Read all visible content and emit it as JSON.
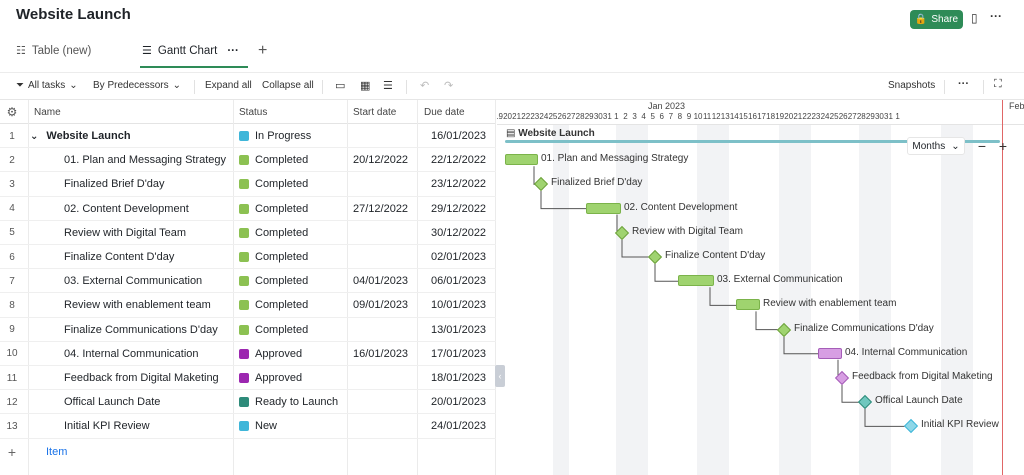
{
  "header": {
    "title": "Website Launch",
    "share_label": "Share"
  },
  "view_tabs": [
    {
      "label": "Table (new)"
    },
    {
      "label": "Gantt Chart"
    }
  ],
  "toolbar": {
    "filter_label": "All tasks",
    "group_label": "By Predecessors",
    "expand_label": "Expand all",
    "collapse_label": "Collapse all",
    "snapshots_label": "Snapshots"
  },
  "columns": {
    "name": "Name",
    "status": "Status",
    "start": "Start date",
    "due": "Due date"
  },
  "status_colors": {
    "In Progress": "#3fb6d9",
    "Completed": "#8cc152",
    "Approved": "#9c27b0",
    "Ready to Launch": "#2e8b7a",
    "New": "#3fb6d9"
  },
  "rows": [
    {
      "num": "1",
      "name": "Website Launch",
      "status": "In Progress",
      "start": "",
      "due": "16/01/2023"
    },
    {
      "num": "2",
      "name": "01. Plan and Messaging Strategy",
      "status": "Completed",
      "start": "20/12/2022",
      "due": "22/12/2022"
    },
    {
      "num": "3",
      "name": "Finalized Brief D'day",
      "status": "Completed",
      "start": "",
      "due": "23/12/2022"
    },
    {
      "num": "4",
      "name": "02. Content Development",
      "status": "Completed",
      "start": "27/12/2022",
      "due": "29/12/2022"
    },
    {
      "num": "5",
      "name": "Review with Digital Team",
      "status": "Completed",
      "start": "",
      "due": "30/12/2022"
    },
    {
      "num": "6",
      "name": "Finalize Content D'day",
      "status": "Completed",
      "start": "",
      "due": "02/01/2023"
    },
    {
      "num": "7",
      "name": "03. External Communication",
      "status": "Completed",
      "start": "04/01/2023",
      "due": "06/01/2023"
    },
    {
      "num": "8",
      "name": "Review with enablement team",
      "status": "Completed",
      "start": "09/01/2023",
      "due": "10/01/2023"
    },
    {
      "num": "9",
      "name": "Finalize Communications D'day",
      "status": "Completed",
      "start": "",
      "due": "13/01/2023"
    },
    {
      "num": "10",
      "name": "04. Internal Communication",
      "status": "Approved",
      "start": "16/01/2023",
      "due": "17/01/2023"
    },
    {
      "num": "11",
      "name": "Feedback from Digital Maketing",
      "status": "Approved",
      "start": "",
      "due": "18/01/2023"
    },
    {
      "num": "12",
      "name": "Offical Launch Date",
      "status": "Ready to Launch",
      "start": "",
      "due": "20/01/2023"
    },
    {
      "num": "13",
      "name": "Initial KPI Review",
      "status": "New",
      "start": "",
      "due": "24/01/2023"
    }
  ],
  "add_row": {
    "icon": "+",
    "label": "Item"
  },
  "gantt": {
    "month_jan": "Jan 2023",
    "month_feb": "Feb",
    "days": [
      "19",
      "20",
      "21",
      "22",
      "23",
      "24",
      "25",
      "26",
      "27",
      "28",
      "29",
      "30",
      "31",
      "1",
      "2",
      "3",
      "4",
      "5",
      "6",
      "7",
      "8",
      "9",
      "10",
      "11",
      "12",
      "13",
      "14",
      "15",
      "16",
      "17",
      "18",
      "19",
      "20",
      "21",
      "22",
      "23",
      "24",
      "25",
      "26",
      "27",
      "28",
      "29",
      "30",
      "31",
      "1"
    ],
    "zoom_label": "Months",
    "summary_label": "Website Launch",
    "labels": [
      "01. Plan and Messaging Strategy",
      "Finalized Brief D'day",
      "02. Content Development",
      "Review with Digital Team",
      "Finalize Content D'day",
      "03. External Communication",
      "Review with enablement team",
      "Finalize Communications D'day",
      "04. Internal Communication",
      "Feedback from Digital Maketing",
      "Offical Launch Date",
      "Initial KPI Review"
    ]
  }
}
